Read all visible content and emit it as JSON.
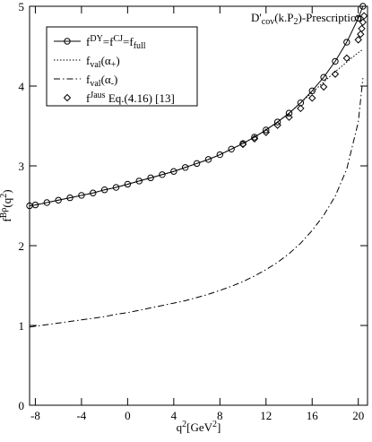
{
  "chart_data": {
    "type": "line",
    "title": "D'_{cov}(k.P_{2})-Prescription",
    "xlabel": "q^{2}[GeV^{2}]",
    "ylabel": "f^{Bρ}(q^{2})",
    "xlim": [
      -8.5,
      20.8
    ],
    "xticks": [
      -8,
      -4,
      0,
      4,
      8,
      12,
      16,
      20
    ],
    "ylim": [
      0,
      5
    ],
    "yticks": [
      0,
      1,
      2,
      3,
      4,
      5
    ],
    "legend": "upper-left",
    "x": [
      -8.5,
      -8,
      -7,
      -6,
      -5,
      -4,
      -3,
      -2,
      -1,
      0,
      1,
      2,
      3,
      4,
      5,
      6,
      7,
      8,
      9,
      10,
      11,
      12,
      13,
      14,
      15,
      16,
      17,
      18,
      19,
      20,
      20.4
    ],
    "series": [
      {
        "name": "f^{DY}=f^{CJ}=f_{full}",
        "color": "#000000",
        "style": "solid",
        "marker": "circle",
        "values": [
          2.5,
          2.51,
          2.54,
          2.57,
          2.6,
          2.63,
          2.66,
          2.7,
          2.73,
          2.77,
          2.81,
          2.85,
          2.89,
          2.93,
          2.98,
          3.03,
          3.08,
          3.14,
          3.21,
          3.28,
          3.36,
          3.45,
          3.55,
          3.66,
          3.79,
          3.94,
          4.11,
          4.31,
          4.55,
          4.85,
          5.0
        ]
      },
      {
        "name": "f_{val}(α_{+})",
        "color": "#000000",
        "style": "dotted",
        "marker": "none",
        "values": [
          2.5,
          2.51,
          2.54,
          2.57,
          2.6,
          2.63,
          2.66,
          2.7,
          2.73,
          2.77,
          2.81,
          2.85,
          2.89,
          2.93,
          2.98,
          3.03,
          3.08,
          3.14,
          3.21,
          3.28,
          3.36,
          3.45,
          3.55,
          3.66,
          3.79,
          3.92,
          4.05,
          4.18,
          4.3,
          4.42,
          4.46
        ]
      },
      {
        "name": "f_{val}(α_{-})",
        "color": "#000000",
        "style": "dashdot",
        "marker": "none",
        "values": [
          0.98,
          0.99,
          1.01,
          1.03,
          1.05,
          1.07,
          1.09,
          1.11,
          1.14,
          1.16,
          1.19,
          1.22,
          1.25,
          1.28,
          1.31,
          1.35,
          1.39,
          1.44,
          1.49,
          1.55,
          1.62,
          1.7,
          1.79,
          1.9,
          2.03,
          2.19,
          2.38,
          2.62,
          2.96,
          3.55,
          4.1
        ]
      },
      {
        "name": "f^{Jaus} Eq.(4.16) [13]",
        "color": "#000000",
        "style": "none",
        "marker": "diamond",
        "x": [
          10,
          11,
          12,
          13,
          14,
          15,
          16,
          17,
          18,
          19,
          20,
          20.2,
          20.3,
          20.4,
          20.5
        ],
        "values": [
          3.27,
          3.34,
          3.42,
          3.51,
          3.61,
          3.72,
          3.85,
          3.99,
          4.15,
          4.35,
          4.58,
          4.65,
          4.72,
          4.8,
          4.88
        ]
      }
    ]
  }
}
